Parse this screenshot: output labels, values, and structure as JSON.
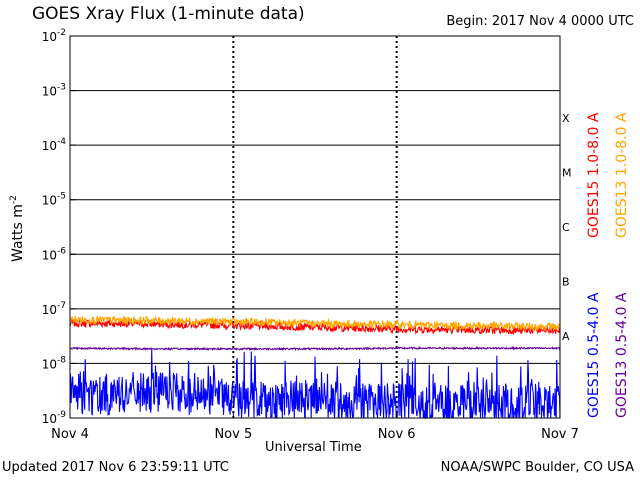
{
  "header": {
    "title": "GOES Xray Flux (1-minute data)",
    "begin": "Begin:  2017 Nov 4 0000 UTC"
  },
  "footer": {
    "updated": "Updated 2017 Nov  6 23:59:11 UTC",
    "credit": "NOAA/SWPC Boulder, CO USA"
  },
  "chart_data": {
    "type": "line",
    "title": "GOES Xray Flux (1-minute data)",
    "xlabel": "Universal Time",
    "ylabel": "Watts m",
    "ylabel_superscript": "-2",
    "yscale": "log",
    "ylim": [
      1e-09,
      0.01
    ],
    "xlim": [
      "2017-11-04",
      "2017-11-07"
    ],
    "x_ticks": [
      "Nov 4",
      "Nov 5",
      "Nov 6",
      "Nov 7"
    ],
    "y_ticks": [
      {
        "base": "10",
        "exp": "-2",
        "value": 0.01
      },
      {
        "base": "10",
        "exp": "-3",
        "value": 0.001
      },
      {
        "base": "10",
        "exp": "-4",
        "value": 0.0001
      },
      {
        "base": "10",
        "exp": "-5",
        "value": 1e-05
      },
      {
        "base": "10",
        "exp": "-6",
        "value": 1e-06
      },
      {
        "base": "10",
        "exp": "-7",
        "value": 1e-07
      },
      {
        "base": "10",
        "exp": "-8",
        "value": 1e-08
      },
      {
        "base": "10",
        "exp": "-9",
        "value": 1e-09
      }
    ],
    "flare_classes": [
      {
        "label": "X",
        "value": 0.0001
      },
      {
        "label": "M",
        "value": 1e-05
      },
      {
        "label": "C",
        "value": 1e-06
      },
      {
        "label": "B",
        "value": 1e-07
      },
      {
        "label": "A",
        "value": 1e-08
      }
    ],
    "grid": true,
    "legend_position": "right, vertical",
    "series": [
      {
        "name": "GOES15 1.0-8.0 A",
        "color": "#ff0000",
        "x": [
          "2017-11-04",
          "2017-11-04 12:00",
          "2017-11-05",
          "2017-11-05 12:00",
          "2017-11-06",
          "2017-11-06 12:00",
          "2017-11-07"
        ],
        "values": [
          5.5e-08,
          5.3e-08,
          5e-08,
          4.6e-08,
          4.3e-08,
          4.1e-08,
          4e-08
        ]
      },
      {
        "name": "GOES13 1.0-8.0 A",
        "color": "#ffa500",
        "x": [
          "2017-11-04",
          "2017-11-04 12:00",
          "2017-11-05",
          "2017-11-05 12:00",
          "2017-11-06",
          "2017-11-06 12:00",
          "2017-11-07"
        ],
        "values": [
          6.3e-08,
          6.1e-08,
          5.8e-08,
          5.4e-08,
          5.1e-08,
          4.9e-08,
          4.7e-08
        ]
      },
      {
        "name": "GOES15 0.5-4.0 A",
        "color": "#0000ff",
        "x": [
          "2017-11-04",
          "2017-11-04 12:00",
          "2017-11-05",
          "2017-11-05 12:00",
          "2017-11-06",
          "2017-11-06 12:00",
          "2017-11-07"
        ],
        "values": [
          2.5e-09,
          3e-09,
          2.3e-09,
          2e-09,
          1.8e-09,
          1.7e-09,
          1.8e-09
        ]
      },
      {
        "name": "GOES13 0.5-4.0 A",
        "color": "#660099",
        "x": [
          "2017-11-04",
          "2017-11-04 12:00",
          "2017-11-05",
          "2017-11-05 12:00",
          "2017-11-06",
          "2017-11-06 12:00",
          "2017-11-07"
        ],
        "values": [
          1.9e-08,
          1.85e-08,
          1.85e-08,
          1.85e-08,
          1.9e-08,
          1.9e-08,
          1.9e-08
        ]
      }
    ]
  }
}
